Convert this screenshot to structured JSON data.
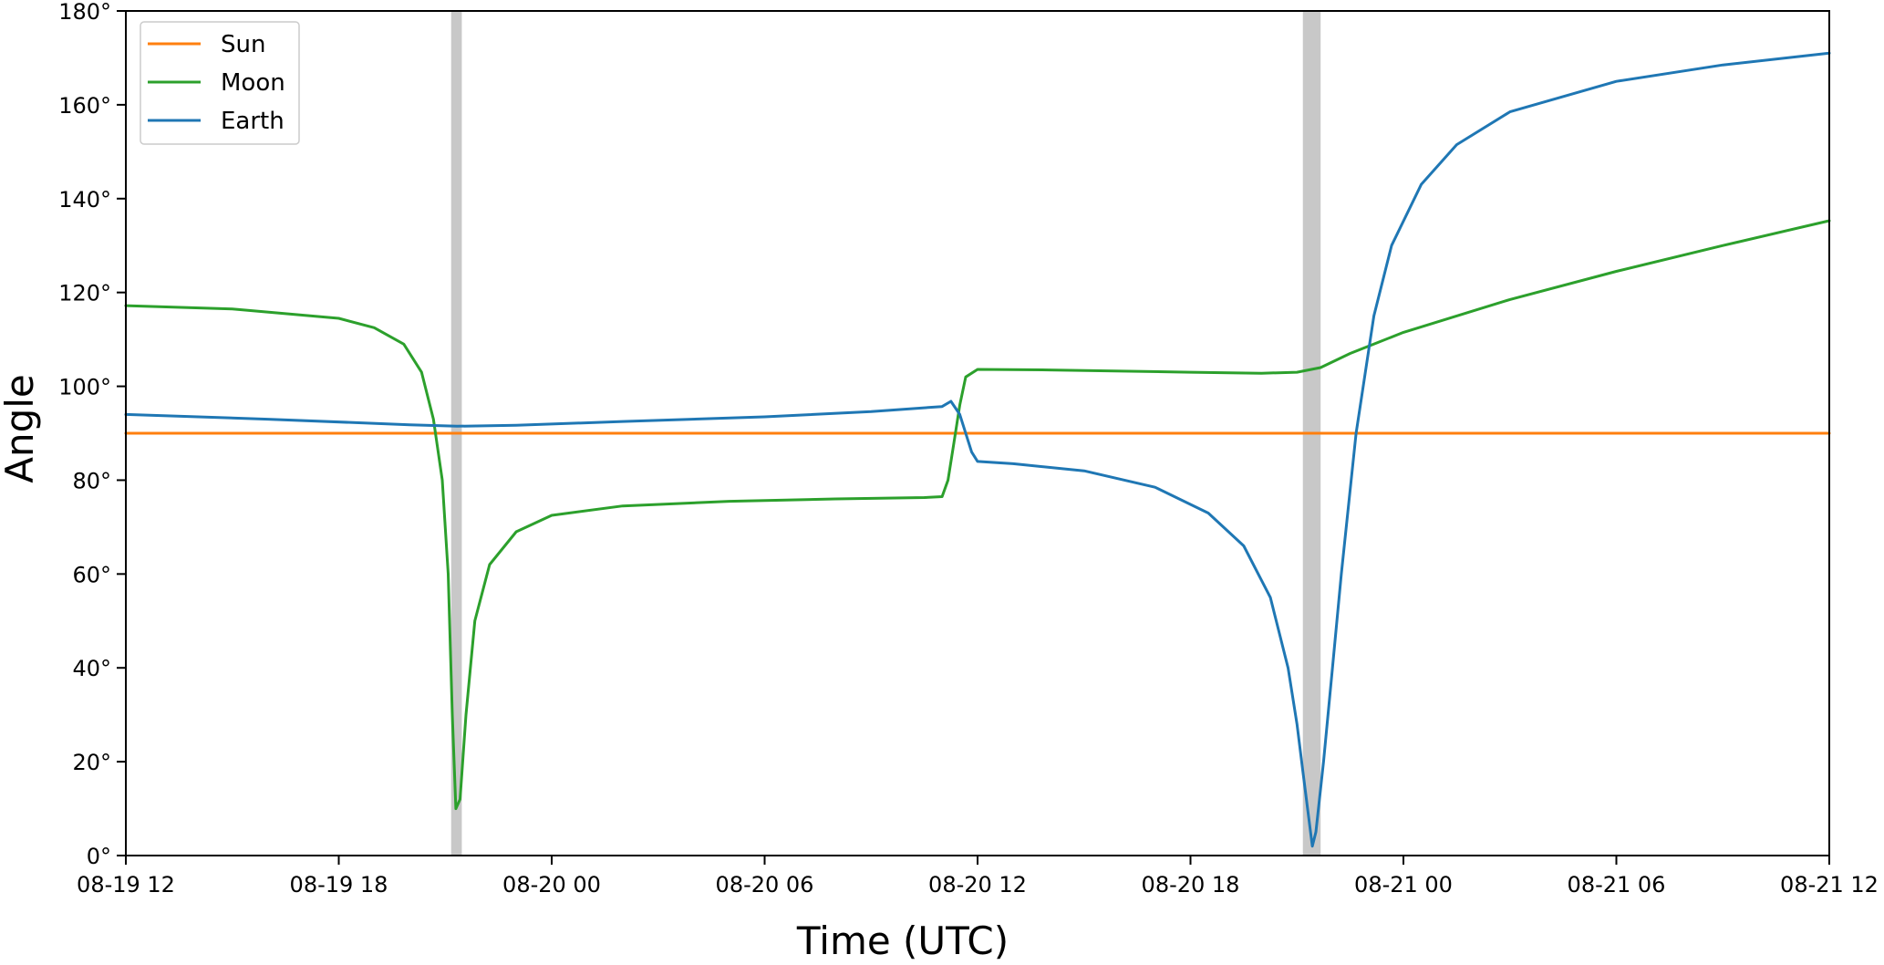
{
  "chart_data": {
    "type": "line",
    "xlabel": "Time (UTC)",
    "ylabel": "Angle",
    "x_ticks": [
      "08-19 12",
      "08-19 18",
      "08-20 00",
      "08-20 06",
      "08-20 12",
      "08-20 18",
      "08-21 00",
      "08-21 06",
      "08-21 12"
    ],
    "x_range": [
      "08-19 12:00",
      "08-21 12:00"
    ],
    "ylim": [
      0,
      180
    ],
    "y_ticks": [
      "0°",
      "20°",
      "40°",
      "60°",
      "80°",
      "100°",
      "120°",
      "140°",
      "160°",
      "180°"
    ],
    "y_tick_values": [
      0,
      20,
      40,
      60,
      80,
      100,
      120,
      140,
      160,
      180
    ],
    "grid": false,
    "legend_position": "top-left",
    "shaded_spans": [
      {
        "start": "08-19 21:10",
        "end": "08-19 21:28",
        "color": "#c8c8c8"
      },
      {
        "start": "08-20 21:10",
        "end": "08-20 21:40",
        "color": "#c8c8c8"
      }
    ],
    "series": [
      {
        "name": "Sun",
        "color": "#ff7f0e",
        "points": [
          [
            "08-19 12:00",
            90
          ],
          [
            "08-21 12:00",
            90
          ]
        ]
      },
      {
        "name": "Moon",
        "color": "#2ca02c",
        "points": [
          [
            "08-19 12:00",
            117.2
          ],
          [
            "08-19 15:00",
            116.5
          ],
          [
            "08-19 18:00",
            114.5
          ],
          [
            "08-19 19:00",
            112.5
          ],
          [
            "08-19 19:50",
            109
          ],
          [
            "08-19 20:20",
            103
          ],
          [
            "08-19 20:40",
            93
          ],
          [
            "08-19 20:55",
            80
          ],
          [
            "08-19 21:05",
            60
          ],
          [
            "08-19 21:12",
            30
          ],
          [
            "08-19 21:18",
            10
          ],
          [
            "08-19 21:25",
            12
          ],
          [
            "08-19 21:35",
            30
          ],
          [
            "08-19 21:50",
            50
          ],
          [
            "08-19 22:15",
            62
          ],
          [
            "08-19 23:00",
            69
          ],
          [
            "08-20 00:00",
            72.5
          ],
          [
            "08-20 02:00",
            74.5
          ],
          [
            "08-20 05:00",
            75.5
          ],
          [
            "08-20 08:00",
            76
          ],
          [
            "08-20 10:30",
            76.3
          ],
          [
            "08-20 11:00",
            76.5
          ],
          [
            "08-20 11:10",
            80
          ],
          [
            "08-20 11:20",
            88
          ],
          [
            "08-20 11:30",
            96
          ],
          [
            "08-20 11:40",
            102
          ],
          [
            "08-20 12:00",
            103.6
          ],
          [
            "08-20 14:00",
            103.5
          ],
          [
            "08-20 18:00",
            103
          ],
          [
            "08-20 20:00",
            102.8
          ],
          [
            "08-20 21:00",
            103
          ],
          [
            "08-20 21:40",
            104
          ],
          [
            "08-20 22:30",
            107
          ],
          [
            "08-21 00:00",
            111.5
          ],
          [
            "08-21 03:00",
            118.5
          ],
          [
            "08-21 06:00",
            124.5
          ],
          [
            "08-21 09:00",
            130
          ],
          [
            "08-21 12:00",
            135.3
          ]
        ]
      },
      {
        "name": "Earth",
        "color": "#1f77b4",
        "points": [
          [
            "08-19 12:00",
            94
          ],
          [
            "08-19 16:00",
            93
          ],
          [
            "08-19 20:00",
            91.8
          ],
          [
            "08-19 21:20",
            91.5
          ],
          [
            "08-19 23:00",
            91.7
          ],
          [
            "08-20 02:00",
            92.5
          ],
          [
            "08-20 06:00",
            93.5
          ],
          [
            "08-20 09:00",
            94.6
          ],
          [
            "08-20 11:00",
            95.7
          ],
          [
            "08-20 11:15",
            96.8
          ],
          [
            "08-20 11:30",
            94
          ],
          [
            "08-20 11:50",
            86
          ],
          [
            "08-20 12:00",
            84
          ],
          [
            "08-20 13:00",
            83.5
          ],
          [
            "08-20 15:00",
            82
          ],
          [
            "08-20 17:00",
            78.5
          ],
          [
            "08-20 18:30",
            73
          ],
          [
            "08-20 19:30",
            66
          ],
          [
            "08-20 20:15",
            55
          ],
          [
            "08-20 20:45",
            40
          ],
          [
            "08-20 21:00",
            28
          ],
          [
            "08-20 21:10",
            18
          ],
          [
            "08-20 21:20",
            8
          ],
          [
            "08-20 21:26",
            2
          ],
          [
            "08-20 21:32",
            5
          ],
          [
            "08-20 21:45",
            20
          ],
          [
            "08-20 22:00",
            40
          ],
          [
            "08-20 22:15",
            60
          ],
          [
            "08-20 22:40",
            90
          ],
          [
            "08-20 23:10",
            115
          ],
          [
            "08-20 23:40",
            130
          ],
          [
            "08-21 00:30",
            143
          ],
          [
            "08-21 01:30",
            151.5
          ],
          [
            "08-21 03:00",
            158.5
          ],
          [
            "08-21 06:00",
            165
          ],
          [
            "08-21 09:00",
            168.5
          ],
          [
            "08-21 12:00",
            171
          ]
        ]
      }
    ]
  }
}
